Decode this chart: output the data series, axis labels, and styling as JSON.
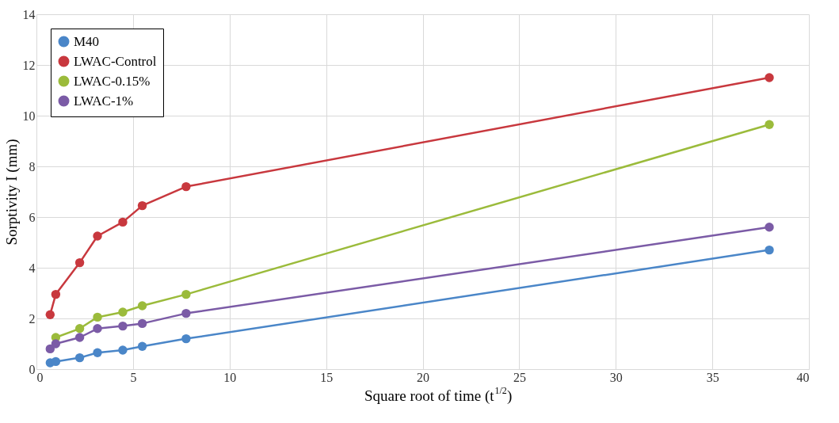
{
  "chart_data": {
    "type": "line",
    "xlabel": "Square root of time (t$^{1/2}$)",
    "ylabel": "Sorptivity I (mm)",
    "x": [
      0.71,
      1.0,
      2.24,
      3.16,
      4.47,
      5.48,
      7.75,
      37.95
    ],
    "series": [
      {
        "name": "M40",
        "color": "#4a86c8",
        "values": [
          0.25,
          0.3,
          0.45,
          0.65,
          0.75,
          0.9,
          1.2,
          4.7
        ]
      },
      {
        "name": "LWAC-Control",
        "color": "#c8383e",
        "values": [
          2.15,
          2.95,
          4.2,
          5.25,
          5.8,
          6.45,
          7.2,
          11.5
        ]
      },
      {
        "name": "LWAC-0.15%",
        "color": "#9bbb3b",
        "values": [
          null,
          1.25,
          1.6,
          2.05,
          2.25,
          2.5,
          2.95,
          9.65
        ]
      },
      {
        "name": "LWAC-1%",
        "color": "#7b5ba6",
        "values": [
          0.8,
          1.0,
          1.25,
          1.6,
          1.7,
          1.8,
          2.2,
          5.6
        ]
      }
    ],
    "xlim": [
      0,
      40
    ],
    "xticks": [
      0,
      5,
      10,
      15,
      20,
      25,
      30,
      35,
      40
    ],
    "ylim": [
      0,
      14
    ],
    "yticks": [
      0,
      2,
      4,
      6,
      8,
      10,
      12,
      14
    ],
    "grid": true,
    "legend": "top left",
    "marker": "circle",
    "line_style": "solid"
  }
}
